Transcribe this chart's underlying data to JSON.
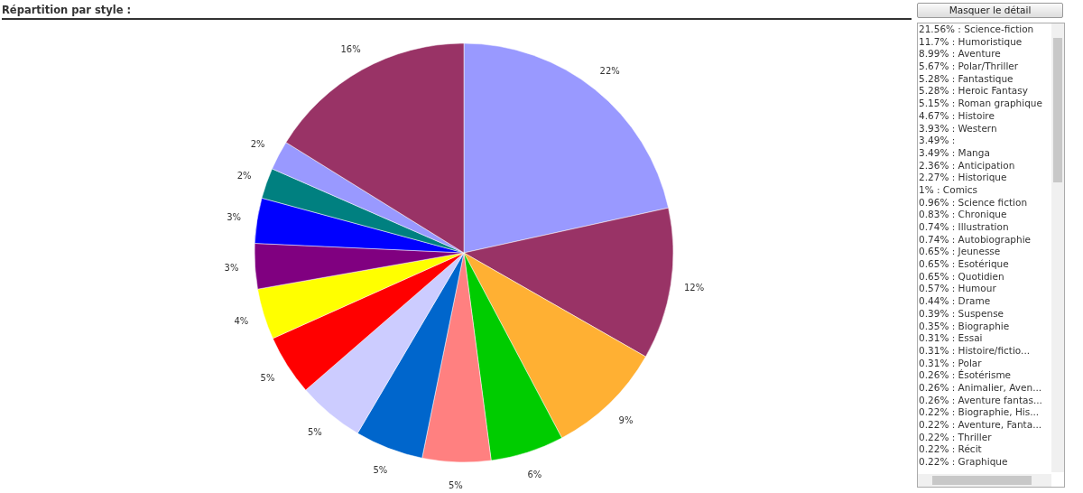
{
  "chart_data": {
    "type": "pie",
    "title": "Répartition par style :",
    "categories": [
      null,
      null,
      null,
      null,
      null,
      null,
      null,
      null,
      null,
      null,
      null,
      null,
      null,
      null
    ],
    "values": [
      21.56,
      11.7,
      8.99,
      5.67,
      5.28,
      5.28,
      5.15,
      4.67,
      3.93,
      3.49,
      3.49,
      2.36,
      2.27,
      16.16
    ],
    "value_labels": [
      "22%",
      "12%",
      "9%",
      "6%",
      "5%",
      "5%",
      "5%",
      "5%",
      "4%",
      "3%",
      "3%",
      "2%",
      "2%",
      "16%"
    ],
    "colors": [
      "#9999ff",
      "#993366",
      "#ffb033",
      "#00cc00",
      "#ff8080",
      "#0066cc",
      "#ccccff",
      "#ff0000",
      "#ffff00",
      "#800080",
      "#0000ff",
      "#008080",
      "#9999ff",
      "#993366"
    ],
    "annotations": [
      "Masquer le détail",
      "21.56% : Science-fiction",
      "11.7% : Humoristique",
      "8.99% : Aventure",
      "5.67% : Polar/Thriller",
      "5.28% : Fantastique",
      "5.28% : Heroic Fantasy",
      "5.15% : Roman graphique",
      "4.67% : Histoire",
      "3.93% : Western",
      "3.49% :",
      "3.49% : Manga",
      "2.36% : Anticipation",
      "2.27% : Historique",
      "1% : Comics",
      "0.96% : Science fiction",
      "0.83% : Chronique",
      "0.74% : Illustration",
      "0.74% : Autobiographie",
      "0.65% : Jeunesse",
      "0.65% : Esotérique",
      "0.65% : Quotidien",
      "0.57% : Humour",
      "0.44% : Drame",
      "0.39% : Suspense",
      "0.35% : Biographie",
      "0.31% : Essai",
      "0.31% : Histoire/fictio...",
      "0.31% : Polar",
      "0.26% : Ésotérisme",
      "0.26% : Animalier, Aven...",
      "0.26% : Aventure fantas...",
      "0.22% : Biographie, His...",
      "0.22% : Aventure, Fanta...",
      "0.22% : Thriller",
      "0.22% : Récit",
      "0.22% : Graphique"
    ]
  }
}
